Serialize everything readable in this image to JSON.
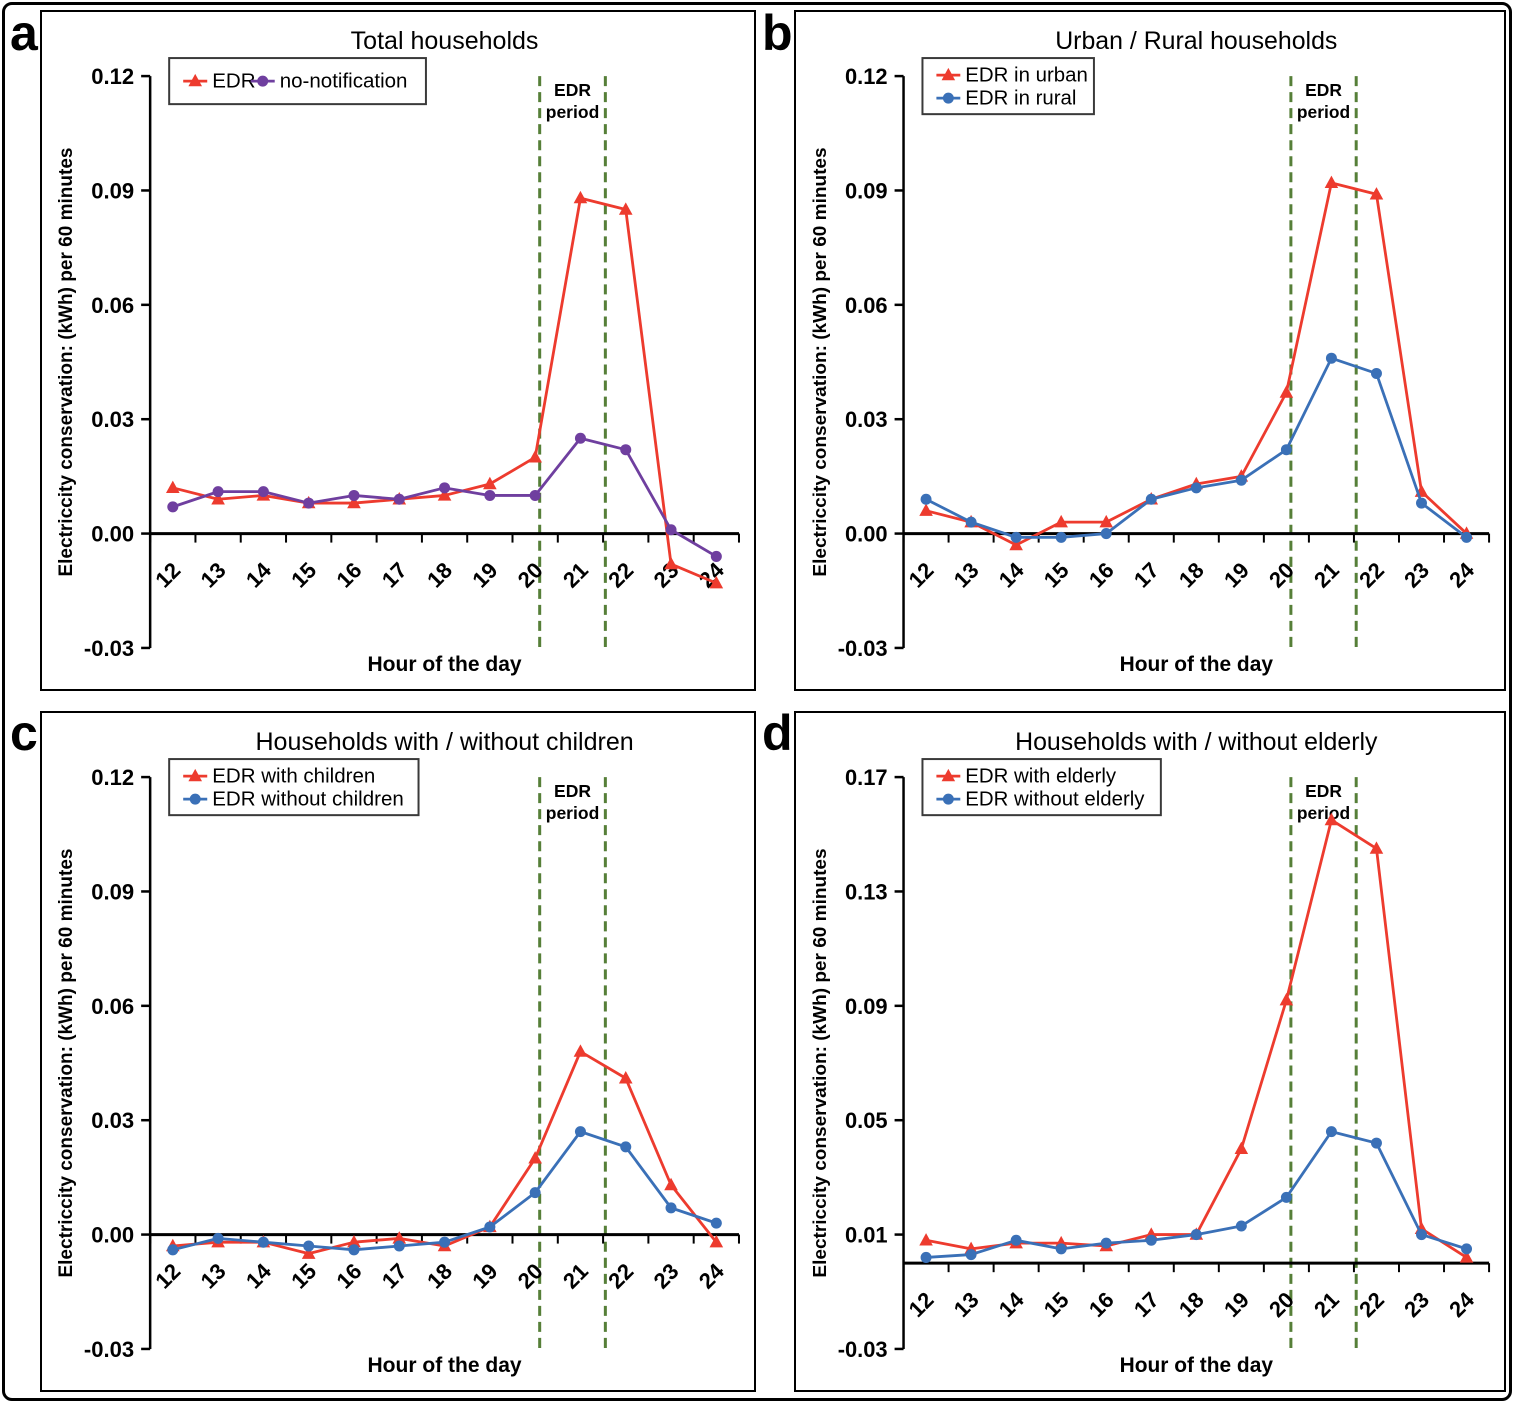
{
  "figure": {
    "panel_letters": [
      "a",
      "b",
      "c",
      "d"
    ]
  },
  "chart_data": [
    {
      "type": "line",
      "panel": "a",
      "title": "Total households",
      "xlabel": "Hour of the day",
      "ylabel": "Electriccity conservation: (kWh) per 60 minutes",
      "x": [
        12,
        13,
        14,
        15,
        16,
        17,
        18,
        19,
        20,
        21,
        22,
        23,
        24
      ],
      "ylim": [
        -0.03,
        0.12
      ],
      "yticks": [
        -0.03,
        0.0,
        0.03,
        0.06,
        0.09,
        0.12
      ],
      "ytick_labels": [
        "-0.03",
        "0.00",
        "0.03",
        "0.06",
        "0.09",
        "0.12"
      ],
      "grid": false,
      "legend_rows": 1,
      "legend_position": "top-left",
      "edr_period_lines_x": [
        20.1,
        21.55
      ],
      "edr_period_label": [
        "EDR",
        "period"
      ],
      "edr_period_color": "#567f38",
      "series": [
        {
          "name": "EDR",
          "color": "#ed3b2e",
          "marker": "triangle",
          "values": [
            0.012,
            0.009,
            0.01,
            0.008,
            0.008,
            0.009,
            0.01,
            0.013,
            0.02,
            0.088,
            0.085,
            -0.008,
            -0.013
          ]
        },
        {
          "name": "no-notification",
          "color": "#6f3f9f",
          "marker": "circle",
          "values": [
            0.007,
            0.011,
            0.011,
            0.008,
            0.01,
            0.009,
            0.012,
            0.01,
            0.01,
            0.025,
            0.022,
            0.001,
            -0.006
          ]
        }
      ]
    },
    {
      "type": "line",
      "panel": "b",
      "title": "Urban / Rural households",
      "xlabel": "Hour of the day",
      "ylabel": "Electriccity conservation: (kWh) per 60 minutes",
      "x": [
        12,
        13,
        14,
        15,
        16,
        17,
        18,
        19,
        20,
        21,
        22,
        23,
        24
      ],
      "ylim": [
        -0.03,
        0.12
      ],
      "yticks": [
        -0.03,
        0.0,
        0.03,
        0.06,
        0.09,
        0.12
      ],
      "ytick_labels": [
        "-0.03",
        "0.00",
        "0.03",
        "0.06",
        "0.09",
        "0.12"
      ],
      "grid": false,
      "legend_rows": 2,
      "legend_position": "top-left",
      "edr_period_lines_x": [
        20.1,
        21.55
      ],
      "edr_period_label": [
        "EDR",
        "period"
      ],
      "edr_period_color": "#567f38",
      "series": [
        {
          "name": "EDR in urban",
          "color": "#ed3b2e",
          "marker": "triangle",
          "values": [
            0.006,
            0.003,
            -0.003,
            0.003,
            0.003,
            0.009,
            0.013,
            0.015,
            0.037,
            0.092,
            0.089,
            0.011,
            0.0
          ]
        },
        {
          "name": "EDR in rural",
          "color": "#3a70b7",
          "marker": "circle",
          "values": [
            0.009,
            0.003,
            -0.001,
            -0.001,
            0.0,
            0.009,
            0.012,
            0.014,
            0.022,
            0.046,
            0.042,
            0.008,
            -0.001
          ]
        }
      ]
    },
    {
      "type": "line",
      "panel": "c",
      "title": "Households with / without children",
      "xlabel": "Hour of the day",
      "ylabel": "Electriccity conservation: (kWh) per 60 minutes",
      "x": [
        12,
        13,
        14,
        15,
        16,
        17,
        18,
        19,
        20,
        21,
        22,
        23,
        24
      ],
      "ylim": [
        -0.03,
        0.12
      ],
      "yticks": [
        -0.03,
        0.0,
        0.03,
        0.06,
        0.09,
        0.12
      ],
      "ytick_labels": [
        "-0.03",
        "0.00",
        "0.03",
        "0.06",
        "0.09",
        "0.12"
      ],
      "grid": false,
      "legend_rows": 2,
      "legend_position": "top-left",
      "edr_period_lines_x": [
        20.1,
        21.55
      ],
      "edr_period_label": [
        "EDR",
        "period"
      ],
      "edr_period_color": "#567f38",
      "series": [
        {
          "name": "EDR with children",
          "color": "#ed3b2e",
          "marker": "triangle",
          "values": [
            -0.003,
            -0.002,
            -0.002,
            -0.005,
            -0.002,
            -0.001,
            -0.003,
            0.002,
            0.02,
            0.048,
            0.041,
            0.013,
            -0.002
          ]
        },
        {
          "name": "EDR without children",
          "color": "#3a70b7",
          "marker": "circle",
          "values": [
            -0.004,
            -0.001,
            -0.002,
            -0.003,
            -0.004,
            -0.003,
            -0.002,
            0.002,
            0.011,
            0.027,
            0.023,
            0.007,
            0.003
          ]
        }
      ]
    },
    {
      "type": "line",
      "panel": "d",
      "title": "Households with / without elderly",
      "xlabel": "Hour of the day",
      "ylabel": "Electriccity conservation: (kWh) per 60 minutes",
      "x": [
        12,
        13,
        14,
        15,
        16,
        17,
        18,
        19,
        20,
        21,
        22,
        23,
        24
      ],
      "ylim": [
        -0.03,
        0.17
      ],
      "yticks": [
        -0.03,
        0.01,
        0.05,
        0.09,
        0.13,
        0.17
      ],
      "ytick_labels": [
        "-0.03",
        "0.01",
        "0.05",
        "0.09",
        "0.13",
        "0.17"
      ],
      "grid": false,
      "legend_rows": 2,
      "legend_position": "top-left",
      "edr_period_lines_x": [
        20.1,
        21.55
      ],
      "edr_period_label": [
        "EDR",
        "period"
      ],
      "edr_period_color": "#567f38",
      "series": [
        {
          "name": "EDR with elderly",
          "color": "#ed3b2e",
          "marker": "triangle",
          "values": [
            0.008,
            0.005,
            0.007,
            0.007,
            0.006,
            0.01,
            0.01,
            0.04,
            0.092,
            0.155,
            0.145,
            0.012,
            0.002
          ]
        },
        {
          "name": "EDR without elderly",
          "color": "#3a70b7",
          "marker": "circle",
          "values": [
            0.002,
            0.003,
            0.008,
            0.005,
            0.007,
            0.008,
            0.01,
            0.013,
            0.023,
            0.046,
            0.042,
            0.01,
            0.005
          ]
        }
      ]
    }
  ]
}
